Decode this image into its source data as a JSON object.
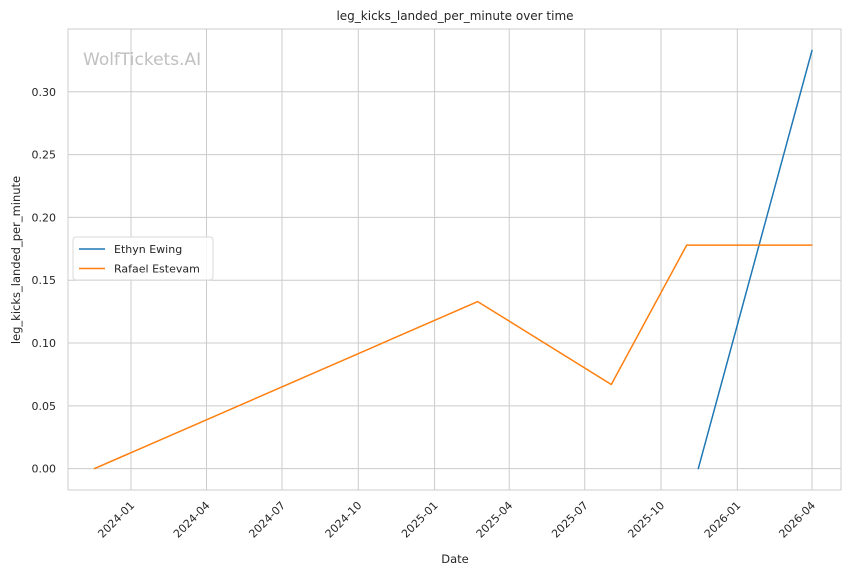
{
  "chart_data": {
    "type": "line",
    "title": "leg_kicks_landed_per_minute over time",
    "xlabel": "Date",
    "ylabel": "leg_kicks_landed_per_minute",
    "watermark": "WolfTickets.AI",
    "grid": true,
    "legend_position": "center-left",
    "x_ticks": [
      "2024-01",
      "2024-04",
      "2024-07",
      "2024-10",
      "2025-01",
      "2025-04",
      "2025-07",
      "2025-10",
      "2026-01",
      "2026-04"
    ],
    "y_ticks": [
      "0.00",
      "0.05",
      "0.10",
      "0.15",
      "0.20",
      "0.25",
      "0.30"
    ],
    "xlim": [
      "2023-10-17",
      "2026-05-06"
    ],
    "ylim": [
      -0.017,
      0.35
    ],
    "series": [
      {
        "name": "Ethyn Ewing",
        "color": "#1f77b4",
        "points": [
          {
            "x": "2025-11-15",
            "y": 0.0
          },
          {
            "x": "2026-04-01",
            "y": 0.333
          }
        ]
      },
      {
        "name": "Rafael Estevam",
        "color": "#ff7f0e",
        "points": [
          {
            "x": "2023-11-18",
            "y": 0.0
          },
          {
            "x": "2025-02-22",
            "y": 0.133
          },
          {
            "x": "2025-08-02",
            "y": 0.067
          },
          {
            "x": "2025-11-01",
            "y": 0.178
          },
          {
            "x": "2026-04-01",
            "y": 0.178
          }
        ]
      }
    ]
  }
}
